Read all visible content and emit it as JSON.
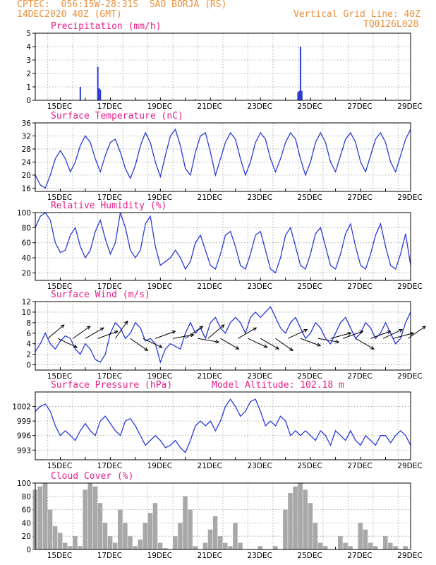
{
  "header": {
    "line1": "CPTEC:  056:15W-28:31S  SAO BORJA (RS)",
    "line2": "14DEC2020 40Z (GMT)",
    "right1": "Vertical Grid Line: 40Z",
    "right2": "TQ0126L028"
  },
  "colors": {
    "series": "#2a3ad8",
    "bars": "#2a3ad8",
    "cloud": "#a8a8a8",
    "title": "#e8208a",
    "header": "#e8903a",
    "grid": "#9a9a9a",
    "arrow": "#000000"
  },
  "chart_data": [
    {
      "id": "precip",
      "type": "bar",
      "title": "Precipitation (mm/h)",
      "xrange": [
        14.0,
        29.0
      ],
      "xticks": [
        "15DEC",
        "17DEC",
        "19DEC",
        "21DEC",
        "23DEC",
        "25DEC",
        "27DEC",
        "29DEC"
      ],
      "ylim": [
        0,
        5
      ],
      "yticks": [
        "0",
        "1",
        "2",
        "3",
        "4",
        "5"
      ],
      "x": [
        15.8,
        16.5,
        16.55,
        16.6,
        18.1,
        20.4,
        21.3,
        24.5,
        24.55,
        24.6,
        24.65
      ],
      "values": [
        1.0,
        2.5,
        0.9,
        0.8,
        0.05,
        0.08,
        0.05,
        0.6,
        0.7,
        4.0,
        0.7
      ]
    },
    {
      "id": "temp",
      "type": "line",
      "title": "Surface Temperature (nC)",
      "xrange": [
        14.0,
        29.0
      ],
      "xticks": [
        "15DEC",
        "17DEC",
        "19DEC",
        "21DEC",
        "23DEC",
        "25DEC",
        "27DEC",
        "29DEC"
      ],
      "ylim": [
        15,
        36
      ],
      "yticks": [
        "16",
        "20",
        "24",
        "28",
        "32",
        "36"
      ],
      "x": [
        14.0,
        14.2,
        14.4,
        14.6,
        14.8,
        15.0,
        15.2,
        15.4,
        15.6,
        15.8,
        16.0,
        16.2,
        16.4,
        16.6,
        16.8,
        17.0,
        17.2,
        17.4,
        17.6,
        17.8,
        18.0,
        18.2,
        18.4,
        18.6,
        18.8,
        19.0,
        19.2,
        19.4,
        19.6,
        19.8,
        20.0,
        20.2,
        20.4,
        20.6,
        20.8,
        21.0,
        21.2,
        21.4,
        21.6,
        21.8,
        22.0,
        22.2,
        22.4,
        22.6,
        22.8,
        23.0,
        23.2,
        23.4,
        23.6,
        23.8,
        24.0,
        24.2,
        24.4,
        24.6,
        24.8,
        25.0,
        25.2,
        25.4,
        25.6,
        25.8,
        26.0,
        26.2,
        26.4,
        26.6,
        26.8,
        27.0,
        27.2,
        27.4,
        27.6,
        27.8,
        28.0,
        28.2,
        28.4,
        28.6,
        28.8,
        29.0
      ],
      "values": [
        20,
        17,
        16,
        20,
        25,
        27.5,
        25,
        21,
        24,
        29,
        32,
        30,
        25,
        21,
        26,
        30,
        31,
        27,
        22,
        19,
        23,
        29,
        33,
        30,
        24,
        19.5,
        26,
        32,
        34,
        29,
        22,
        20,
        27,
        32,
        33,
        27,
        20,
        25,
        30,
        33,
        31,
        25,
        20,
        24,
        30,
        33,
        31,
        25,
        21,
        25,
        30,
        33,
        31,
        25,
        20,
        24,
        30,
        33,
        30,
        24,
        21,
        26,
        31,
        33,
        30,
        24,
        21,
        26,
        31,
        33,
        30,
        24,
        21,
        26,
        31,
        34
      ]
    },
    {
      "id": "rh",
      "type": "line",
      "title": "Relative Humidity (%)",
      "xrange": [
        14.0,
        29.0
      ],
      "xticks": [
        "15DEC",
        "17DEC",
        "19DEC",
        "21DEC",
        "23DEC",
        "25DEC",
        "27DEC",
        "29DEC"
      ],
      "ylim": [
        10,
        100
      ],
      "yticks": [
        "20",
        "40",
        "60",
        "80",
        "100"
      ],
      "x": [
        14.0,
        14.2,
        14.4,
        14.6,
        14.8,
        15.0,
        15.2,
        15.4,
        15.6,
        15.8,
        16.0,
        16.2,
        16.4,
        16.6,
        16.8,
        17.0,
        17.2,
        17.4,
        17.6,
        17.8,
        18.0,
        18.2,
        18.4,
        18.6,
        18.8,
        19.0,
        19.2,
        19.4,
        19.6,
        19.8,
        20.0,
        20.2,
        20.4,
        20.6,
        20.8,
        21.0,
        21.2,
        21.4,
        21.6,
        21.8,
        22.0,
        22.2,
        22.4,
        22.6,
        22.8,
        23.0,
        23.2,
        23.4,
        23.6,
        23.8,
        24.0,
        24.2,
        24.4,
        24.6,
        24.8,
        25.0,
        25.2,
        25.4,
        25.6,
        25.8,
        26.0,
        26.2,
        26.4,
        26.6,
        26.8,
        27.0,
        27.2,
        27.4,
        27.6,
        27.8,
        28.0,
        28.2,
        28.4,
        28.6,
        28.8,
        29.0
      ],
      "values": [
        80,
        95,
        100,
        90,
        60,
        47,
        50,
        70,
        80,
        55,
        40,
        50,
        75,
        90,
        65,
        45,
        60,
        100,
        80,
        50,
        40,
        50,
        85,
        95,
        55,
        30,
        35,
        40,
        50,
        40,
        25,
        35,
        60,
        70,
        50,
        30,
        25,
        45,
        70,
        75,
        55,
        30,
        25,
        45,
        70,
        75,
        50,
        25,
        20,
        40,
        70,
        80,
        55,
        30,
        25,
        45,
        72,
        80,
        55,
        30,
        25,
        45,
        72,
        85,
        55,
        30,
        25,
        45,
        70,
        85,
        55,
        30,
        25,
        45,
        72,
        30
      ]
    },
    {
      "id": "wind",
      "type": "line",
      "title": "Surface Wind (m/s)",
      "xrange": [
        14.0,
        29.0
      ],
      "xticks": [
        "15DEC",
        "17DEC",
        "19DEC",
        "21DEC",
        "23DEC",
        "25DEC",
        "27DEC",
        "29DEC"
      ],
      "ylim": [
        -1,
        12
      ],
      "yticks": [
        "0",
        "2",
        "4",
        "6",
        "8",
        "10",
        "12"
      ],
      "x": [
        14.0,
        14.2,
        14.4,
        14.6,
        14.8,
        15.0,
        15.2,
        15.4,
        15.6,
        15.8,
        16.0,
        16.2,
        16.4,
        16.6,
        16.8,
        17.0,
        17.2,
        17.4,
        17.6,
        17.8,
        18.0,
        18.2,
        18.4,
        18.6,
        18.8,
        19.0,
        19.2,
        19.4,
        19.6,
        19.8,
        20.0,
        20.2,
        20.4,
        20.6,
        20.8,
        21.0,
        21.2,
        21.4,
        21.6,
        21.8,
        22.0,
        22.2,
        22.4,
        22.6,
        22.8,
        23.0,
        23.2,
        23.4,
        23.6,
        23.8,
        24.0,
        24.2,
        24.4,
        24.6,
        24.8,
        25.0,
        25.2,
        25.4,
        25.6,
        25.8,
        26.0,
        26.2,
        26.4,
        26.6,
        26.8,
        27.0,
        27.2,
        27.4,
        27.6,
        27.8,
        28.0,
        28.2,
        28.4,
        28.6,
        28.8,
        29.0
      ],
      "values": [
        2.5,
        4,
        6,
        4,
        3,
        4.5,
        5.5,
        5,
        3,
        2,
        4,
        3,
        1,
        0.5,
        2,
        6,
        8,
        7,
        5,
        6,
        8,
        7,
        4.5,
        5,
        4,
        0.5,
        3,
        4,
        3.5,
        3,
        6,
        8,
        6,
        7,
        5,
        8,
        9,
        7,
        6,
        8,
        9,
        8,
        6,
        9,
        10,
        9,
        10,
        11,
        9,
        7,
        6,
        8,
        9,
        7,
        5,
        6,
        8,
        7,
        5,
        4,
        6,
        8,
        9,
        7,
        5,
        6,
        8,
        7,
        5,
        6,
        8,
        6,
        4,
        5,
        8,
        10
      ],
      "arrows": [
        [
          14.5,
          -40
        ],
        [
          14.9,
          25
        ],
        [
          15.5,
          -35
        ],
        [
          16.0,
          -30
        ],
        [
          16.5,
          -20
        ],
        [
          17.2,
          -55
        ],
        [
          17.8,
          35
        ],
        [
          18.3,
          25
        ],
        [
          18.8,
          -20
        ],
        [
          19.5,
          -10
        ],
        [
          20.0,
          -35
        ],
        [
          20.5,
          10
        ],
        [
          20.9,
          -40
        ],
        [
          21.4,
          30
        ],
        [
          22.1,
          -30
        ],
        [
          22.5,
          25
        ],
        [
          23.0,
          30
        ],
        [
          23.6,
          35
        ],
        [
          24.1,
          -25
        ],
        [
          24.6,
          20
        ],
        [
          25.3,
          10
        ],
        [
          25.8,
          -15
        ],
        [
          26.3,
          -20
        ],
        [
          26.8,
          30
        ],
        [
          27.4,
          -20
        ],
        [
          27.9,
          -25
        ],
        [
          28.3,
          -15
        ],
        [
          28.9,
          -35
        ]
      ]
    },
    {
      "id": "pres",
      "type": "line",
      "title": "Surface Pressure (hPa)",
      "subtitle": "Model Altitude: 102.18 m",
      "xrange": [
        14.0,
        29.0
      ],
      "xticks": [
        "15DEC",
        "17DEC",
        "19DEC",
        "21DEC",
        "23DEC",
        "25DEC",
        "27DEC",
        "29DEC"
      ],
      "ylim": [
        991,
        1005
      ],
      "yticks": [
        "993",
        "996",
        "999",
        "1002"
      ],
      "x": [
        14.0,
        14.2,
        14.4,
        14.6,
        14.8,
        15.0,
        15.2,
        15.4,
        15.6,
        15.8,
        16.0,
        16.2,
        16.4,
        16.6,
        16.8,
        17.0,
        17.2,
        17.4,
        17.6,
        17.8,
        18.0,
        18.2,
        18.4,
        18.6,
        18.8,
        19.0,
        19.2,
        19.4,
        19.6,
        19.8,
        20.0,
        20.2,
        20.4,
        20.6,
        20.8,
        21.0,
        21.2,
        21.4,
        21.6,
        21.8,
        22.0,
        22.2,
        22.4,
        22.6,
        22.8,
        23.0,
        23.2,
        23.4,
        23.6,
        23.8,
        24.0,
        24.2,
        24.4,
        24.6,
        24.8,
        25.0,
        25.2,
        25.4,
        25.6,
        25.8,
        26.0,
        26.2,
        26.4,
        26.6,
        26.8,
        27.0,
        27.2,
        27.4,
        27.6,
        27.8,
        28.0,
        28.2,
        28.4,
        28.6,
        28.8,
        29.0
      ],
      "values": [
        1001,
        1002,
        1002.5,
        1001,
        998,
        996,
        997,
        996,
        995,
        997,
        998.5,
        997,
        996,
        999,
        1000,
        998.5,
        997,
        996,
        999,
        999.5,
        998,
        996,
        994,
        995,
        996,
        995,
        993.5,
        994,
        995,
        993.5,
        992.5,
        995,
        998,
        999,
        998,
        999,
        997,
        999,
        1002,
        1003.5,
        1002,
        1000,
        1001,
        1003,
        1003.5,
        1001,
        998,
        999,
        998,
        1000,
        999,
        996,
        997,
        996,
        997,
        996,
        995,
        997,
        996,
        994,
        997,
        996,
        995,
        997,
        995,
        994,
        996,
        995,
        994,
        996,
        996,
        994.5,
        996,
        997,
        996,
        994
      ]
    },
    {
      "id": "cloud",
      "type": "area",
      "title": "Cloud Cover (%)",
      "xrange": [
        14.0,
        29.0
      ],
      "xticks": [
        "15DEC",
        "17DEC",
        "19DEC",
        "21DEC",
        "23DEC",
        "25DEC",
        "27DEC",
        "29DEC"
      ],
      "ylim": [
        0,
        100
      ],
      "yticks": [
        "0",
        "20",
        "40",
        "60",
        "80",
        "100"
      ],
      "x": [
        14.0,
        14.2,
        14.4,
        14.6,
        14.8,
        15.0,
        15.2,
        15.4,
        15.6,
        15.8,
        16.0,
        16.2,
        16.4,
        16.6,
        16.8,
        17.0,
        17.2,
        17.4,
        17.6,
        17.8,
        18.0,
        18.2,
        18.4,
        18.6,
        18.8,
        19.0,
        19.2,
        19.4,
        19.6,
        19.8,
        20.0,
        20.2,
        20.4,
        20.6,
        20.8,
        21.0,
        21.2,
        21.4,
        21.6,
        21.8,
        22.0,
        22.2,
        22.4,
        22.6,
        22.8,
        23.0,
        23.2,
        23.4,
        23.6,
        23.8,
        24.0,
        24.2,
        24.4,
        24.6,
        24.8,
        25.0,
        25.2,
        25.4,
        25.6,
        25.8,
        26.0,
        26.2,
        26.4,
        26.6,
        26.8,
        27.0,
        27.2,
        27.4,
        27.6,
        27.8,
        28.0,
        28.2,
        28.4,
        28.6,
        28.8,
        29.0
      ],
      "values": [
        90,
        95,
        100,
        60,
        35,
        25,
        10,
        5,
        20,
        5,
        90,
        100,
        95,
        70,
        40,
        20,
        10,
        60,
        40,
        20,
        5,
        15,
        40,
        55,
        70,
        10,
        2,
        0,
        20,
        40,
        80,
        60,
        5,
        0,
        10,
        30,
        50,
        20,
        10,
        5,
        40,
        10,
        0,
        0,
        0,
        5,
        0,
        0,
        5,
        0,
        60,
        85,
        95,
        100,
        90,
        70,
        40,
        10,
        5,
        0,
        0,
        20,
        10,
        5,
        0,
        40,
        30,
        10,
        5,
        0,
        20,
        10,
        5,
        0,
        5,
        0
      ]
    }
  ]
}
